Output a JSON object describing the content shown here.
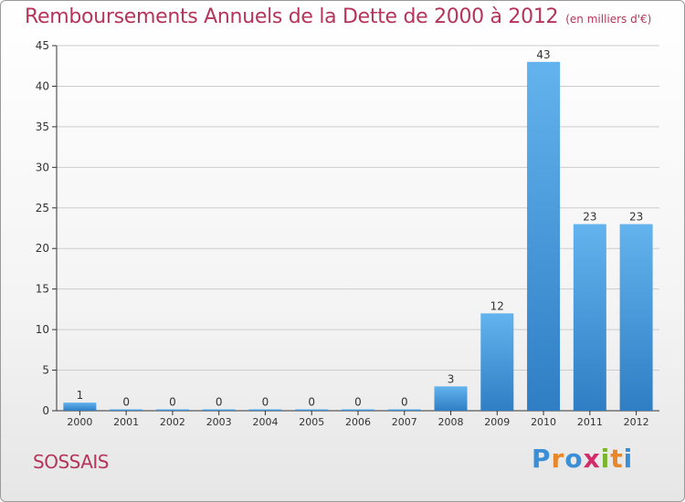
{
  "title": "Remboursements Annuels de la Dette de 2000 à 2012",
  "subtitle": "(en milliers d'€)",
  "commune": "SOSSAIS",
  "logo": {
    "letters": [
      "P",
      "r",
      "o",
      "x",
      "i",
      "t",
      "i"
    ],
    "colors": [
      "#3a8fd6",
      "#e8862a",
      "#3a8fd6",
      "#d12c6a",
      "#7bb52e",
      "#e8862a",
      "#3a8fd6"
    ]
  },
  "colors": {
    "bar": "#3f8fd8",
    "bar_light": "#63b3ee",
    "title": "#b5355a",
    "axis": "#333333",
    "grid": "#cccccc"
  },
  "chart_data": {
    "type": "bar",
    "title": "Remboursements Annuels de la Dette de 2000 à 2012",
    "categories": [
      "2000",
      "2001",
      "2002",
      "2003",
      "2004",
      "2005",
      "2006",
      "2007",
      "2008",
      "2009",
      "2010",
      "2011",
      "2012"
    ],
    "values": [
      1,
      0,
      0,
      0,
      0,
      0,
      0,
      0,
      3,
      12,
      43,
      23,
      23
    ],
    "data_labels": [
      "1",
      "0",
      "0",
      "0",
      "0",
      "0",
      "0",
      "0",
      "3",
      "12",
      "43",
      "23",
      "23"
    ],
    "y_ticks": [
      0,
      5,
      10,
      15,
      20,
      25,
      30,
      35,
      40,
      45
    ],
    "ylim": [
      0,
      45
    ],
    "grid": true
  }
}
